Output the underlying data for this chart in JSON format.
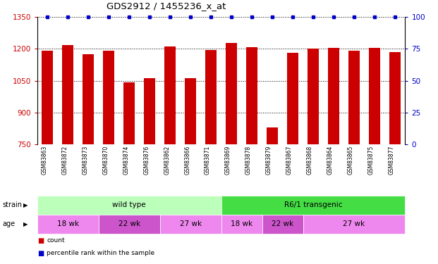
{
  "title": "GDS2912 / 1455236_x_at",
  "samples": [
    "GSM83863",
    "GSM83872",
    "GSM83873",
    "GSM83870",
    "GSM83874",
    "GSM83876",
    "GSM83862",
    "GSM83866",
    "GSM83871",
    "GSM83869",
    "GSM83878",
    "GSM83879",
    "GSM83867",
    "GSM83868",
    "GSM83864",
    "GSM83865",
    "GSM83875",
    "GSM83877"
  ],
  "counts": [
    1192,
    1218,
    1175,
    1190,
    1042,
    1062,
    1210,
    1062,
    1194,
    1228,
    1207,
    830,
    1182,
    1202,
    1204,
    1190,
    1205,
    1185
  ],
  "percentiles": [
    100,
    100,
    100,
    100,
    100,
    100,
    100,
    100,
    100,
    100,
    100,
    100,
    100,
    100,
    100,
    100,
    100,
    100
  ],
  "bar_color": "#cc0000",
  "dot_color": "#0000cc",
  "ylim_left": [
    750,
    1350
  ],
  "ylim_right": [
    0,
    100
  ],
  "yticks_left": [
    750,
    900,
    1050,
    1200,
    1350
  ],
  "yticks_right": [
    0,
    25,
    50,
    75,
    100
  ],
  "strain_labels": [
    {
      "label": "wild type",
      "start": 0,
      "end": 9,
      "color": "#bbffbb"
    },
    {
      "label": "R6/1 transgenic",
      "start": 9,
      "end": 18,
      "color": "#44dd44"
    }
  ],
  "age_groups": [
    {
      "label": "18 wk",
      "start": 0,
      "end": 3,
      "color": "#ee88ee"
    },
    {
      "label": "22 wk",
      "start": 3,
      "end": 6,
      "color": "#cc55cc"
    },
    {
      "label": "27 wk",
      "start": 6,
      "end": 9,
      "color": "#ee88ee"
    },
    {
      "label": "18 wk",
      "start": 9,
      "end": 11,
      "color": "#ee88ee"
    },
    {
      "label": "22 wk",
      "start": 11,
      "end": 13,
      "color": "#cc55cc"
    },
    {
      "label": "27 wk",
      "start": 13,
      "end": 18,
      "color": "#ee88ee"
    }
  ],
  "legend_count_color": "#cc0000",
  "legend_dot_color": "#0000cc",
  "tick_label_color_left": "#cc0000",
  "tick_label_color_right": "#0000cc",
  "background_color": "#ffffff",
  "xtick_bg_color": "#cccccc",
  "left_label_color": "#333333"
}
